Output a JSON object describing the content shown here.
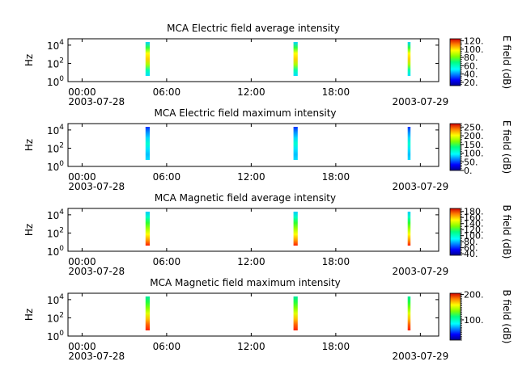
{
  "chart_data": [
    {
      "type": "heatmap",
      "title": "MCA  Electric field average intensity",
      "ylabel": "Hz",
      "y_scale": "log",
      "ylim": [
        1,
        50000
      ],
      "y_ticks": [
        {
          "base": "10",
          "exp": "0"
        },
        {
          "base": "10",
          "exp": "2"
        },
        {
          "base": "10",
          "exp": "4"
        }
      ],
      "x_ticks": [
        "00:00",
        "06:00",
        "12:00",
        "18:00",
        ""
      ],
      "x_date_left": "2003-07-28",
      "x_date_right": "2003-07-29",
      "x_range_hours": [
        -1,
        25.3
      ],
      "segments_hours": [
        [
          4.5,
          4.8
        ],
        [
          15.0,
          15.3
        ],
        [
          23.1,
          23.3
        ]
      ],
      "colorbar": {
        "label": "E field (dB)",
        "range": [
          12,
          125
        ],
        "ticks": [
          "120.",
          "100.",
          "80.",
          "60.",
          "40.",
          "20."
        ],
        "tick_values": [
          120,
          100,
          80,
          60,
          40,
          20
        ]
      },
      "color_profile": [
        "#00d4ff",
        "#30ff40",
        "#ffff00",
        "#ffd000",
        "#a8ff00",
        "#00ffb0",
        "#00e0ff"
      ]
    },
    {
      "type": "heatmap",
      "title": "MCA  Electric field maximum intensity",
      "ylabel": "Hz",
      "y_scale": "log",
      "ylim": [
        1,
        50000
      ],
      "y_ticks": [
        {
          "base": "10",
          "exp": "0"
        },
        {
          "base": "10",
          "exp": "2"
        },
        {
          "base": "10",
          "exp": "4"
        }
      ],
      "x_ticks": [
        "00:00",
        "06:00",
        "12:00",
        "18:00",
        ""
      ],
      "x_date_left": "2003-07-28",
      "x_date_right": "2003-07-29",
      "x_range_hours": [
        -1,
        25.3
      ],
      "segments_hours": [
        [
          4.5,
          4.8
        ],
        [
          15.0,
          15.3
        ],
        [
          23.1,
          23.3
        ]
      ],
      "colorbar": {
        "label": "E field (dB)",
        "range": [
          0,
          270
        ],
        "ticks": [
          "250.",
          "200.",
          "150.",
          "100.",
          "50.",
          "0."
        ],
        "tick_values": [
          250,
          200,
          150,
          100,
          50,
          0
        ]
      },
      "color_profile": [
        "#0030ff",
        "#0090ff",
        "#00d8ff",
        "#00ffd0",
        "#00e8ff",
        "#00c0ff",
        "#00e0ff"
      ]
    },
    {
      "type": "heatmap",
      "title": "MCA  Magnetic field average intensity",
      "ylabel": "Hz",
      "y_scale": "log",
      "ylim": [
        1,
        50000
      ],
      "y_ticks": [
        {
          "base": "10",
          "exp": "0"
        },
        {
          "base": "10",
          "exp": "2"
        },
        {
          "base": "10",
          "exp": "4"
        }
      ],
      "x_ticks": [
        "00:00",
        "06:00",
        "12:00",
        "18:00",
        ""
      ],
      "x_date_left": "2003-07-28",
      "x_date_right": "2003-07-29",
      "x_range_hours": [
        -1,
        25.3
      ],
      "segments_hours": [
        [
          4.5,
          4.8
        ],
        [
          15.0,
          15.3
        ],
        [
          23.1,
          23.3
        ]
      ],
      "colorbar": {
        "label": "B field (dB)",
        "range": [
          35,
          190
        ],
        "ticks": [
          "180.",
          "160.",
          "140.",
          "120.",
          "100.",
          "80.",
          "60.",
          "40."
        ],
        "tick_values": [
          180,
          160,
          140,
          120,
          100,
          80,
          60,
          40
        ]
      },
      "color_profile": [
        "#00ccff",
        "#00ffc0",
        "#30ff30",
        "#a0ff00",
        "#ffff00",
        "#ffa000",
        "#ff2000"
      ]
    },
    {
      "type": "heatmap",
      "title": "MCA  Magnetic field maximum intensity",
      "ylabel": "Hz",
      "y_scale": "log",
      "ylim": [
        1,
        50000
      ],
      "y_ticks": [
        {
          "base": "10",
          "exp": "0"
        },
        {
          "base": "10",
          "exp": "2"
        },
        {
          "base": "10",
          "exp": "4"
        }
      ],
      "x_ticks": [
        "00:00",
        "06:00",
        "12:00",
        "18:00",
        ""
      ],
      "x_date_left": "2003-07-28",
      "x_date_right": "2003-07-29",
      "x_range_hours": [
        -1,
        25.3
      ],
      "segments_hours": [
        [
          4.5,
          4.8
        ],
        [
          15.0,
          15.3
        ],
        [
          23.1,
          23.3
        ]
      ],
      "colorbar": {
        "label": "B field (dB)",
        "range": [
          20,
          205
        ],
        "ticks": [
          "200.",
          "100."
        ],
        "tick_values": [
          200,
          100
        ]
      },
      "color_profile": [
        "#00e8a0",
        "#20ff40",
        "#80ff00",
        "#e0ff00",
        "#ffc000",
        "#ff6000",
        "#ff2000"
      ]
    }
  ]
}
